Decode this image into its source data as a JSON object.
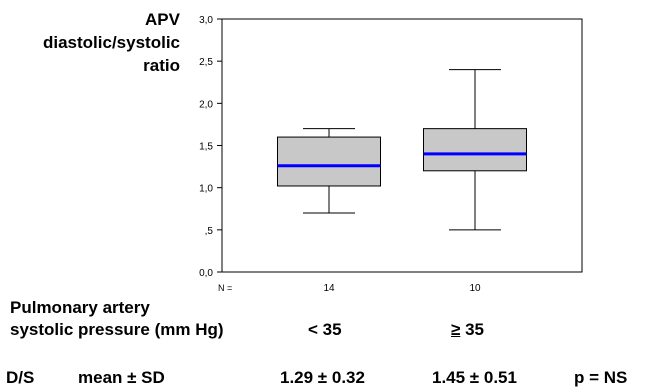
{
  "chart_data": {
    "type": "box",
    "ylabel_lines": [
      "APV",
      "diastolic/systolic",
      "ratio"
    ],
    "ylim": [
      0,
      3.0
    ],
    "yticks": [
      {
        "value": 3.0,
        "label": "3,0"
      },
      {
        "value": 2.5,
        "label": "2,5"
      },
      {
        "value": 2.0,
        "label": "2,0"
      },
      {
        "value": 1.5,
        "label": "1,5"
      },
      {
        "value": 1.0,
        "label": "1,0"
      },
      {
        "value": 0.5,
        "label": ",5"
      },
      {
        "value": 0.0,
        "label": "0,0"
      }
    ],
    "n_label": "N =",
    "boxes": [
      {
        "category": "< 35",
        "n": "14",
        "min": 0.7,
        "q1": 1.02,
        "median": 1.26,
        "q3": 1.6,
        "max": 1.7
      },
      {
        "category": "≥ 35",
        "n": "10",
        "min": 0.5,
        "q1": 1.2,
        "median": 1.4,
        "q3": 1.7,
        "max": 2.4
      }
    ],
    "colors": {
      "box_fill": "#c8c8c8",
      "median": "#0000ff",
      "line": "#000000"
    }
  },
  "xlabel_lines": [
    "Pulmonary  artery",
    "systolic pressure (mm Hg)"
  ],
  "categories": {
    "low": "< 35",
    "high_symbol": "≥",
    "high_value": "35"
  },
  "stats": {
    "label": "D/S",
    "measure": "mean ± SD",
    "low_value": "1.29 ± 0.32",
    "high_value": "1.45 ± 0.51",
    "p_value": "p = NS"
  }
}
